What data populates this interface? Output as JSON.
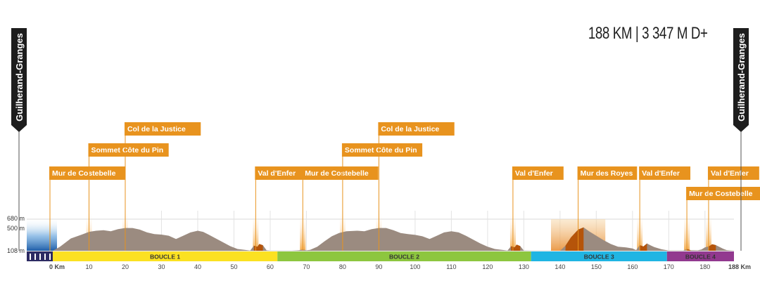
{
  "headline": "188 KM | 3 347 M D+",
  "colors": {
    "terrain": "#9b8b80",
    "climb_fill": "#b5540a",
    "climb_glow": "#f2a23a",
    "label_bg": "#e8931e",
    "banner": "#1d1d1d",
    "start_fill": "#3a7cc4",
    "loop1": "#fbe122",
    "loop2": "#8dc63f",
    "loop3": "#20b5e3",
    "loop4": "#92398f"
  },
  "chart_data": {
    "type": "area",
    "title": "188 KM | 3 347 M D+",
    "xlabel": "",
    "ylabel": "",
    "xlim": [
      0,
      188
    ],
    "ylim": [
      108,
      680
    ],
    "x_ticks": [
      0,
      10,
      20,
      30,
      40,
      50,
      60,
      70,
      80,
      90,
      100,
      110,
      120,
      130,
      140,
      150,
      160,
      170,
      180,
      188
    ],
    "x_tick_labels": [
      "0 Km",
      "10",
      "20",
      "30",
      "40",
      "50",
      "60",
      "70",
      "80",
      "90",
      "100",
      "110",
      "120",
      "130",
      "140",
      "150",
      "160",
      "170",
      "180",
      "188 Km"
    ],
    "y_ticks": [
      108,
      500,
      680
    ],
    "y_tick_labels": [
      "108 m",
      "500 m",
      "680 m"
    ],
    "start_city": "Guilherand-Granges",
    "finish_city": "Guilherand-Granges",
    "profile": [
      [
        0,
        108
      ],
      [
        2,
        180
      ],
      [
        5,
        330
      ],
      [
        8,
        400
      ],
      [
        10,
        450
      ],
      [
        12,
        470
      ],
      [
        14,
        480
      ],
      [
        16,
        460
      ],
      [
        18,
        500
      ],
      [
        20,
        520
      ],
      [
        22,
        520
      ],
      [
        24,
        490
      ],
      [
        26,
        440
      ],
      [
        28,
        410
      ],
      [
        30,
        400
      ],
      [
        32,
        380
      ],
      [
        34,
        320
      ],
      [
        36,
        380
      ],
      [
        38,
        440
      ],
      [
        40,
        470
      ],
      [
        41.5,
        450
      ],
      [
        43,
        400
      ],
      [
        45,
        330
      ],
      [
        47,
        260
      ],
      [
        49,
        190
      ],
      [
        51,
        140
      ],
      [
        53,
        125
      ],
      [
        54.5,
        112
      ],
      [
        55.5,
        200
      ],
      [
        56.5,
        180
      ],
      [
        57,
        230
      ],
      [
        58,
        208
      ],
      [
        59,
        115
      ],
      [
        60,
        108
      ],
      [
        66,
        108
      ],
      [
        68,
        118
      ],
      [
        69,
        130
      ],
      [
        70,
        115
      ],
      [
        71,
        125
      ],
      [
        73,
        180
      ],
      [
        75,
        280
      ],
      [
        77,
        370
      ],
      [
        79,
        430
      ],
      [
        81,
        460
      ],
      [
        84,
        470
      ],
      [
        86,
        460
      ],
      [
        88,
        500
      ],
      [
        90,
        520
      ],
      [
        92,
        520
      ],
      [
        94,
        480
      ],
      [
        96,
        430
      ],
      [
        98,
        410
      ],
      [
        100,
        395
      ],
      [
        102,
        370
      ],
      [
        104,
        320
      ],
      [
        106,
        380
      ],
      [
        108,
        440
      ],
      [
        110,
        460
      ],
      [
        112,
        440
      ],
      [
        114,
        380
      ],
      [
        116,
        310
      ],
      [
        118,
        240
      ],
      [
        120,
        180
      ],
      [
        122,
        140
      ],
      [
        124,
        125
      ],
      [
        125.5,
        112
      ],
      [
        126.5,
        190
      ],
      [
        127.5,
        170
      ],
      [
        128,
        220
      ],
      [
        129,
        195
      ],
      [
        130,
        112
      ],
      [
        132,
        108
      ],
      [
        140,
        108
      ],
      [
        141.5,
        200
      ],
      [
        143,
        350
      ],
      [
        145,
        490
      ],
      [
        146.5,
        530
      ],
      [
        148,
        460
      ],
      [
        150,
        380
      ],
      [
        152,
        300
      ],
      [
        154,
        230
      ],
      [
        156,
        180
      ],
      [
        158,
        170
      ],
      [
        160,
        150
      ],
      [
        161,
        120
      ],
      [
        162,
        210
      ],
      [
        163,
        185
      ],
      [
        164,
        240
      ],
      [
        165,
        205
      ],
      [
        166,
        175
      ],
      [
        168,
        135
      ],
      [
        170,
        112
      ],
      [
        174,
        110
      ],
      [
        175,
        140
      ],
      [
        176,
        120
      ],
      [
        178,
        115
      ],
      [
        179,
        130
      ],
      [
        180,
        170
      ],
      [
        181,
        185
      ],
      [
        182,
        225
      ],
      [
        183,
        210
      ],
      [
        185,
        145
      ],
      [
        186,
        120
      ],
      [
        188,
        108
      ]
    ],
    "climbs": [
      {
        "name": "Mur de Costebelle",
        "km": 0
      },
      {
        "name": "Sommet Côte du Pin",
        "km": 10
      },
      {
        "name": "Col de la Justice",
        "km": 20
      },
      {
        "name": "Val d'Enfer",
        "km": 56
      },
      {
        "name": "Mur de Costebelle",
        "km": 69
      },
      {
        "name": "Sommet Côte du Pin",
        "km": 80
      },
      {
        "name": "Col de la Justice",
        "km": 90
      },
      {
        "name": "Val d'Enfer",
        "km": 127
      },
      {
        "name": "Mur des Royes",
        "km": 145
      },
      {
        "name": "Val d'Enfer",
        "km": 162
      },
      {
        "name": "Mur de Costebelle",
        "km": 175
      },
      {
        "name": "Val d'Enfer",
        "km": 181
      }
    ],
    "loops": [
      {
        "name": "BOUCLE 1",
        "start_km": 0,
        "end_km": 62,
        "color": "#fbe122"
      },
      {
        "name": "BOUCLE 2",
        "start_km": 62,
        "end_km": 132,
        "color": "#8dc63f"
      },
      {
        "name": "BOUCLE 3",
        "start_km": 132,
        "end_km": 169.5,
        "color": "#20b5e3"
      },
      {
        "name": "BOUCLE 4",
        "start_km": 169.5,
        "end_km": 188,
        "color": "#92398f"
      }
    ]
  }
}
